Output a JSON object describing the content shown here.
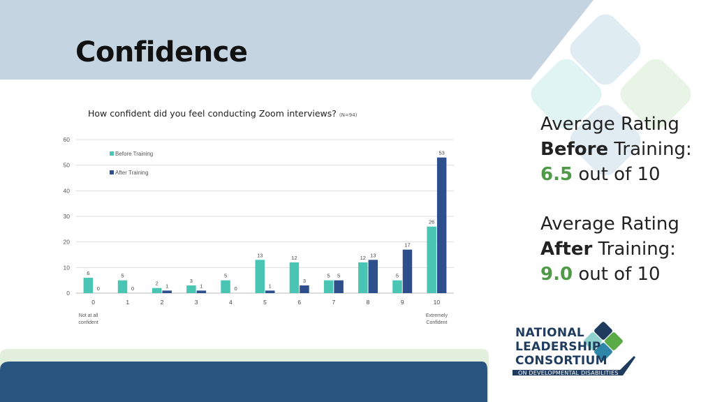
{
  "slide": {
    "title": "Confidence",
    "chart_title": "How confident did you feel conducting Zoom interviews?",
    "chart_note": "(N=94)"
  },
  "stats": {
    "before": {
      "line1": "Average Rating",
      "emphasis": "Before",
      "line2_rest": " Training:",
      "value": "6.5",
      "suffix": " out of 10",
      "value_color": "#4e9a47"
    },
    "after": {
      "line1": "Average Rating",
      "emphasis": "After",
      "line2_rest": " Training:",
      "value": "9.0",
      "suffix": " out of 10",
      "value_color": "#4e9a47"
    }
  },
  "logo": {
    "line1": "NATIONAL",
    "line2": "LEADERSHIP",
    "line3": "CONSORTIUM",
    "sub": "ON DEVELOPMENTAL DISABILITIES"
  },
  "colors": {
    "before": "#4bc5b3",
    "after": "#2e4f8c",
    "header_band": "#c4d4e1",
    "footer_band": "#2a5580"
  },
  "chart_data": {
    "type": "bar",
    "categories": [
      "0",
      "1",
      "2",
      "3",
      "4",
      "5",
      "6",
      "7",
      "8",
      "9",
      "10"
    ],
    "series": [
      {
        "name": "Before Training",
        "values": [
          6,
          5,
          2,
          3,
          5,
          13,
          12,
          5,
          12,
          5,
          26
        ]
      },
      {
        "name": "After Training",
        "values": [
          0,
          0,
          1,
          1,
          0,
          1,
          3,
          5,
          13,
          17,
          53
        ]
      }
    ],
    "ylim": [
      0,
      60
    ],
    "yticks": [
      0,
      10,
      20,
      30,
      40,
      50,
      60
    ],
    "grid": true,
    "legend": "top-left",
    "xlabel_left": [
      "Not at all",
      "confident"
    ],
    "xlabel_right": [
      "Extremely",
      "Confident"
    ],
    "data_labels": true
  }
}
